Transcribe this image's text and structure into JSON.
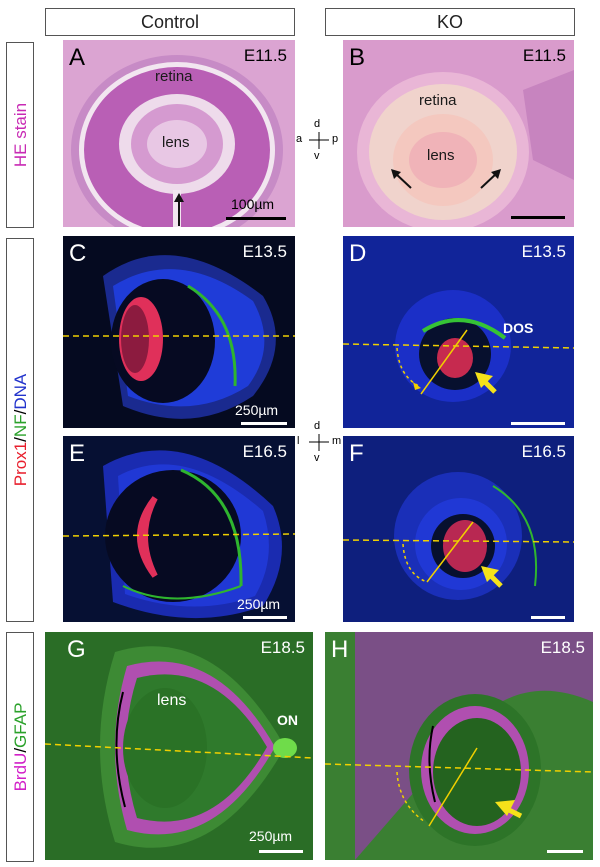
{
  "headers": {
    "control": "Control",
    "ko": "KO"
  },
  "row_labels": {
    "he": "HE stain",
    "prox": {
      "part1": "Prox1",
      "sep1": "/",
      "part2": "NF",
      "sep2": "/",
      "part3": "DNA"
    },
    "brdu": {
      "part1": "BrdU",
      "sep": "/",
      "part2": "GFAP"
    }
  },
  "colors": {
    "he_label": "#c82ab4",
    "prox1": "#e81e2c",
    "nf": "#2aa12a",
    "dna": "#2233cc",
    "brdu": "#d21fc8",
    "gfap": "#2aa12a",
    "dashed_line": "#f0d000",
    "arrow": "#f5e21a"
  },
  "panels": {
    "A": {
      "label": "A",
      "stage": "E11.5",
      "retina": "retina",
      "lens": "lens",
      "scale": "100µm"
    },
    "B": {
      "label": "B",
      "stage": "E11.5",
      "retina": "retina",
      "lens": "lens"
    },
    "C": {
      "label": "C",
      "stage": "E13.5",
      "scale": "250µm"
    },
    "D": {
      "label": "D",
      "stage": "E13.5",
      "dos": "DOS"
    },
    "E": {
      "label": "E",
      "stage": "E16.5",
      "scale": "250µm"
    },
    "F": {
      "label": "F",
      "stage": "E16.5"
    },
    "G": {
      "label": "G",
      "stage": "E18.5",
      "lens": "lens",
      "on": "ON",
      "scale": "250µm"
    },
    "H": {
      "label": "H",
      "stage": "E18.5"
    }
  },
  "compass_1": {
    "top": "d",
    "left": "a",
    "right": "p",
    "bottom": "v"
  },
  "compass_2": {
    "top": "d",
    "left": "l",
    "right": "m",
    "bottom": "v"
  }
}
